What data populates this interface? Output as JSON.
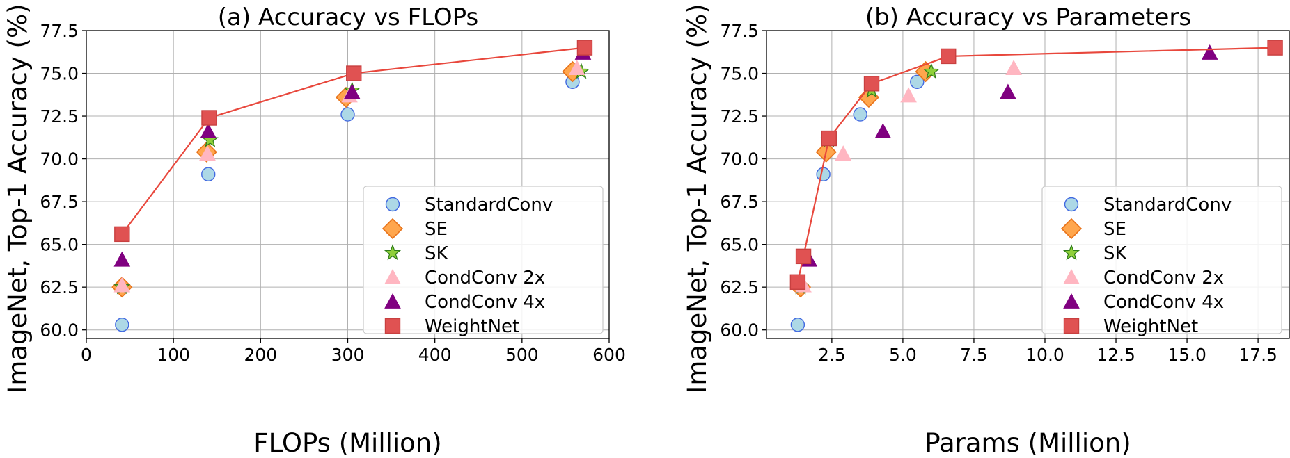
{
  "chart_data": [
    {
      "type": "scatter",
      "title": "(a) Accuracy vs FLOPs",
      "xlabel": "FLOPs (Million)",
      "ylabel": "ImageNet, Top-1 Accuracy (%)",
      "xlim": [
        0,
        600
      ],
      "ylim": [
        59.5,
        77.5
      ],
      "xticks": [
        0,
        100,
        200,
        300,
        400,
        500,
        600
      ],
      "xtick_labels": [
        "0",
        "100",
        "200",
        "300",
        "400",
        "500",
        "600"
      ],
      "yticks": [
        60.0,
        62.5,
        65.0,
        67.5,
        70.0,
        72.5,
        75.0,
        77.5
      ],
      "ytick_labels": [
        "60.0",
        "62.5",
        "65.0",
        "67.5",
        "70.0",
        "72.5",
        "75.0",
        "77.5"
      ],
      "grid": true,
      "legend_position": "lower-right",
      "series": [
        {
          "name": "StandardConv",
          "marker": "circle",
          "fill": "#add8e6",
          "stroke": "#4169e1",
          "x": [
            41,
            140,
            300,
            558
          ],
          "y": [
            60.3,
            69.1,
            72.6,
            74.5
          ]
        },
        {
          "name": "SE",
          "marker": "diamond",
          "fill": "#ffa64d",
          "stroke": "#e8731a",
          "x": [
            41,
            138,
            298,
            558
          ],
          "y": [
            62.5,
            70.4,
            73.6,
            75.1
          ]
        },
        {
          "name": "SK",
          "marker": "star",
          "fill": "#8fd03a",
          "stroke": "#2e7d1a",
          "x": [
            41,
            142,
            305,
            568
          ],
          "y": [
            62.5,
            71.1,
            74.0,
            75.1
          ]
        },
        {
          "name": "CondConv 2x",
          "marker": "triangle",
          "fill": "#ffb6c1",
          "stroke": "#ffb6c1",
          "x": [
            41,
            139,
            302,
            563
          ],
          "y": [
            62.6,
            70.3,
            73.7,
            75.3
          ]
        },
        {
          "name": "CondConv 4x",
          "marker": "triangle",
          "fill": "#800080",
          "stroke": "#800080",
          "x": [
            41,
            140,
            305,
            570
          ],
          "y": [
            64.1,
            71.6,
            73.9,
            76.2
          ]
        },
        {
          "name": "WeightNet",
          "marker": "square",
          "fill": "#e05252",
          "stroke": "#c84040",
          "line": true,
          "line_color": "#e8473c",
          "x": [
            41,
            141,
            307,
            572
          ],
          "y": [
            65.6,
            72.4,
            75.0,
            76.5
          ]
        }
      ]
    },
    {
      "type": "scatter",
      "title": "(b) Accuracy vs Parameters",
      "xlabel": "Params (Million)",
      "ylabel": "ImageNet, Top-1 Accuracy (%)",
      "xlim": [
        0.2,
        18.6
      ],
      "ylim": [
        59.5,
        77.5
      ],
      "xticks": [
        2.5,
        5.0,
        7.5,
        10.0,
        12.5,
        15.0,
        17.5
      ],
      "xtick_labels": [
        "2.5",
        "5.0",
        "7.5",
        "10.0",
        "12.5",
        "15.0",
        "17.5"
      ],
      "yticks": [
        60.0,
        62.5,
        65.0,
        67.5,
        70.0,
        72.5,
        75.0,
        77.5
      ],
      "ytick_labels": [
        "60.0",
        "62.5",
        "65.0",
        "67.5",
        "70.0",
        "72.5",
        "75.0",
        "77.5"
      ],
      "grid": true,
      "legend_position": "lower-right",
      "series": [
        {
          "name": "StandardConv",
          "marker": "circle",
          "fill": "#add8e6",
          "stroke": "#4169e1",
          "x": [
            1.3,
            2.2,
            3.5,
            5.5
          ],
          "y": [
            60.3,
            69.1,
            72.6,
            74.5
          ]
        },
        {
          "name": "SE",
          "marker": "diamond",
          "fill": "#ffa64d",
          "stroke": "#e8731a",
          "x": [
            1.4,
            2.3,
            3.8,
            5.8
          ],
          "y": [
            62.5,
            70.4,
            73.6,
            75.1
          ]
        },
        {
          "name": "SK",
          "marker": "star",
          "fill": "#8fd03a",
          "stroke": "#2e7d1a",
          "x": [
            1.4,
            2.4,
            3.9,
            6.0
          ],
          "y": [
            62.5,
            71.1,
            74.0,
            75.1
          ]
        },
        {
          "name": "CondConv 2x",
          "marker": "triangle",
          "fill": "#ffb6c1",
          "stroke": "#ffb6c1",
          "x": [
            1.5,
            2.9,
            5.2,
            8.9
          ],
          "y": [
            62.6,
            70.3,
            73.7,
            75.3
          ]
        },
        {
          "name": "CondConv 4x",
          "marker": "triangle",
          "fill": "#800080",
          "stroke": "#800080",
          "x": [
            1.7,
            4.3,
            8.7,
            15.8
          ],
          "y": [
            64.1,
            71.6,
            73.9,
            76.2
          ]
        },
        {
          "name": "WeightNet",
          "marker": "square",
          "fill": "#e05252",
          "stroke": "#c84040",
          "line": true,
          "line_color": "#e8473c",
          "x": [
            1.3,
            1.5,
            2.4,
            3.9,
            6.6,
            18.1
          ],
          "y": [
            62.8,
            64.3,
            71.2,
            74.4,
            76.0,
            76.5
          ]
        }
      ]
    }
  ]
}
